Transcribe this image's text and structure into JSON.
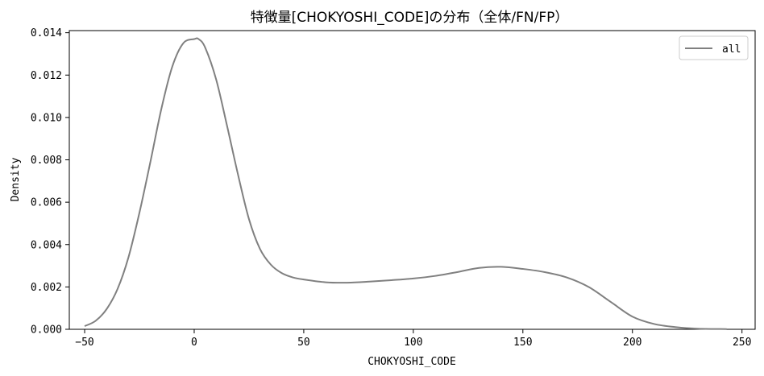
{
  "chart_data": {
    "type": "line",
    "title": "特徴量[CHOKYOSHI_CODE]の分布（全体/FN/FP）",
    "xlabel": "CHOKYOSHI_CODE",
    "ylabel": "Density",
    "xlim": [
      -57,
      256
    ],
    "ylim": [
      0,
      0.0141
    ],
    "xticks": [
      -50,
      0,
      50,
      100,
      150,
      200,
      250
    ],
    "xtick_labels": [
      "−50",
      "0",
      "50",
      "100",
      "150",
      "200",
      "250"
    ],
    "yticks": [
      0.0,
      0.002,
      0.004,
      0.006,
      0.008,
      0.01,
      0.012,
      0.014
    ],
    "ytick_labels": [
      "0.000",
      "0.002",
      "0.004",
      "0.006",
      "0.008",
      "0.010",
      "0.012",
      "0.014"
    ],
    "grid": false,
    "legend_position": "top-right",
    "series": [
      {
        "name": "all",
        "color": "#808080",
        "x": [
          -50,
          -45,
          -40,
          -35,
          -30,
          -25,
          -20,
          -15,
          -10,
          -5,
          0,
          2,
          5,
          10,
          15,
          20,
          25,
          30,
          35,
          40,
          45,
          50,
          60,
          70,
          80,
          90,
          100,
          110,
          120,
          130,
          140,
          150,
          160,
          170,
          180,
          190,
          200,
          210,
          220,
          230,
          243
        ],
        "y": [
          0.00015,
          0.0004,
          0.00095,
          0.0019,
          0.0034,
          0.0055,
          0.0079,
          0.0104,
          0.0124,
          0.0135,
          0.0137,
          0.0137,
          0.0133,
          0.0118,
          0.0096,
          0.0073,
          0.0052,
          0.0038,
          0.00305,
          0.00265,
          0.00245,
          0.00235,
          0.00222,
          0.0022,
          0.00225,
          0.00232,
          0.0024,
          0.00252,
          0.0027,
          0.0029,
          0.00295,
          0.00285,
          0.0027,
          0.00245,
          0.002,
          0.0013,
          0.0006,
          0.00025,
          0.0001,
          3e-05,
          1e-05
        ]
      }
    ]
  }
}
